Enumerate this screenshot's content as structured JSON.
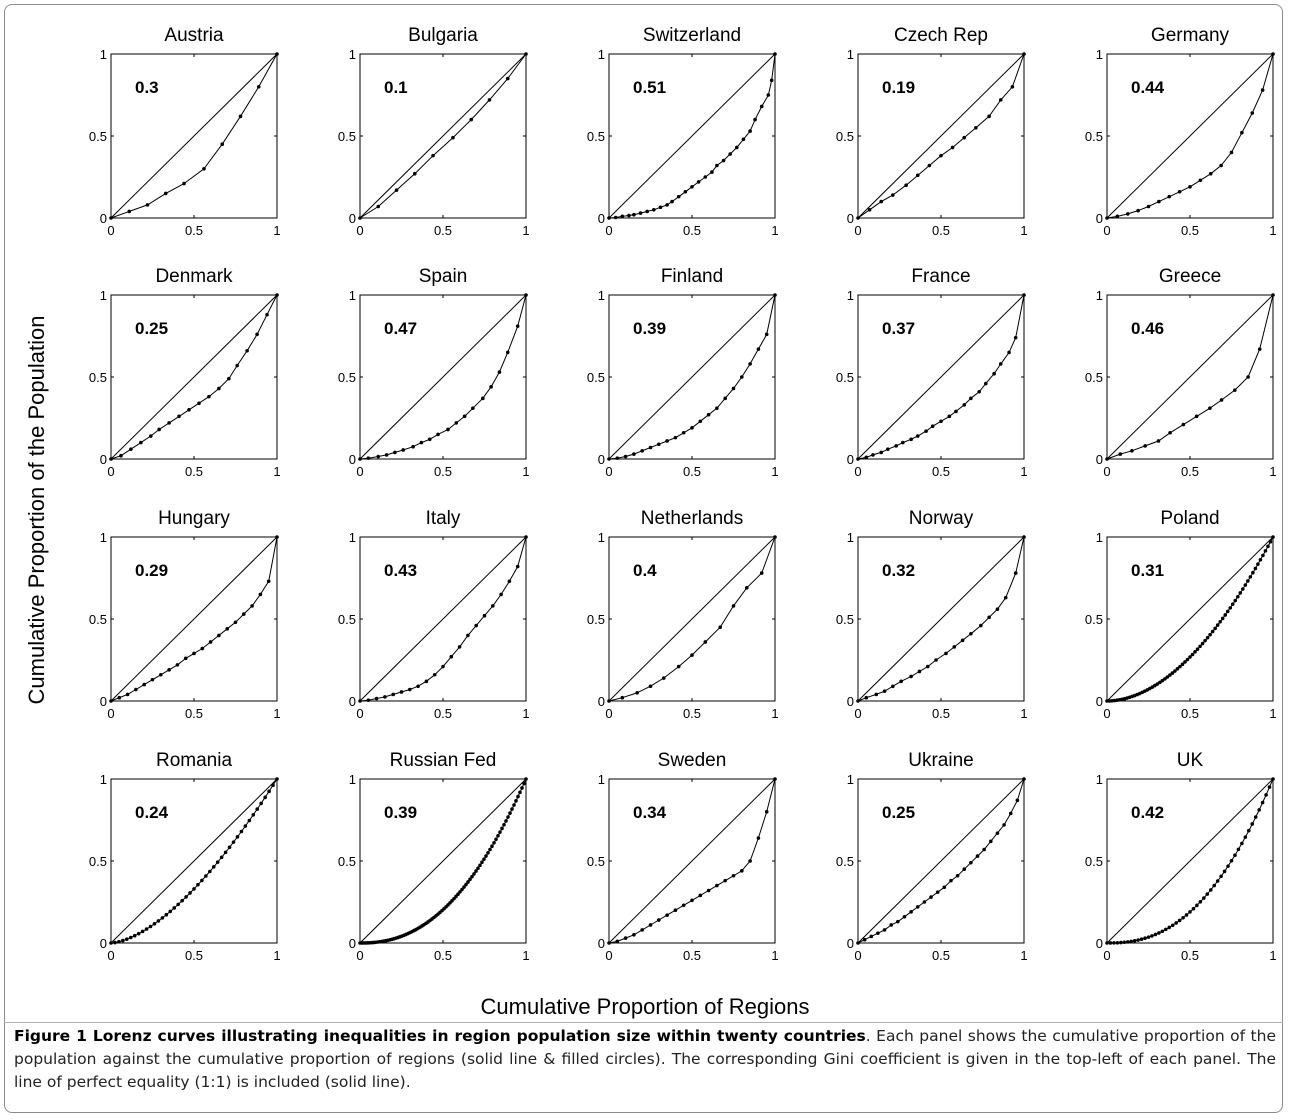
{
  "figure": {
    "ylabel": "Cumulative Proportion of the Population",
    "xlabel": "Cumulative Proportion of Regions",
    "caption_title": "Figure 1 Lorenz curves illustrating inequalities in region population size within twenty countries",
    "caption_text": ". Each panel shows the cumulative proportion of the population against the cumulative proportion of regions (solid line & filled circles). The corresponding Gini coefficient is given in the top-left of each panel. The line of perfect equality (1:1) is included (solid line)."
  },
  "chart_data": [
    {
      "type": "line",
      "title": "Austria",
      "gini_label": "0.3",
      "xlim": [
        0,
        1
      ],
      "ylim": [
        0,
        1
      ],
      "xticks": [
        "0",
        "0.5",
        "1"
      ],
      "yticks": [
        "0",
        "0.5",
        "1"
      ],
      "x": [
        0,
        0.11,
        0.22,
        0.33,
        0.44,
        0.56,
        0.67,
        0.78,
        0.89,
        1
      ],
      "y": [
        0,
        0.04,
        0.08,
        0.15,
        0.21,
        0.3,
        0.45,
        0.62,
        0.8,
        1
      ]
    },
    {
      "type": "line",
      "title": "Bulgaria",
      "gini_label": "0.1",
      "xlim": [
        0,
        1
      ],
      "ylim": [
        0,
        1
      ],
      "xticks": [
        "0",
        "0.5",
        "1"
      ],
      "yticks": [
        "0",
        "0.5",
        "1"
      ],
      "x": [
        0,
        0.11,
        0.22,
        0.33,
        0.44,
        0.56,
        0.67,
        0.78,
        0.89,
        1
      ],
      "y": [
        0,
        0.07,
        0.17,
        0.27,
        0.38,
        0.49,
        0.6,
        0.72,
        0.85,
        1
      ]
    },
    {
      "type": "line",
      "title": "Switzerland",
      "gini_label": "0.51",
      "xlim": [
        0,
        1
      ],
      "ylim": [
        0,
        1
      ],
      "xticks": [
        "0",
        "0.5",
        "1"
      ],
      "yticks": [
        "0",
        "0.5",
        "1"
      ],
      "x": [
        0,
        0.04,
        0.08,
        0.12,
        0.15,
        0.19,
        0.23,
        0.27,
        0.31,
        0.35,
        0.38,
        0.42,
        0.46,
        0.5,
        0.54,
        0.58,
        0.62,
        0.65,
        0.69,
        0.73,
        0.77,
        0.81,
        0.85,
        0.88,
        0.92,
        0.96,
        0.98,
        1
      ],
      "y": [
        0,
        0.003,
        0.01,
        0.015,
        0.02,
        0.03,
        0.04,
        0.05,
        0.065,
        0.08,
        0.1,
        0.13,
        0.16,
        0.19,
        0.22,
        0.25,
        0.28,
        0.32,
        0.35,
        0.39,
        0.43,
        0.48,
        0.53,
        0.6,
        0.68,
        0.75,
        0.84,
        1
      ]
    },
    {
      "type": "line",
      "title": "Czech Rep",
      "gini_label": "0.19",
      "xlim": [
        0,
        1
      ],
      "ylim": [
        0,
        1
      ],
      "xticks": [
        "0",
        "0.5",
        "1"
      ],
      "yticks": [
        "0",
        "0.5",
        "1"
      ],
      "x": [
        0,
        0.07,
        0.14,
        0.21,
        0.29,
        0.36,
        0.43,
        0.5,
        0.57,
        0.64,
        0.71,
        0.79,
        0.86,
        0.93,
        1
      ],
      "y": [
        0,
        0.05,
        0.1,
        0.14,
        0.2,
        0.26,
        0.32,
        0.38,
        0.43,
        0.49,
        0.55,
        0.62,
        0.72,
        0.8,
        1
      ]
    },
    {
      "type": "line",
      "title": "Germany",
      "gini_label": "0.44",
      "xlim": [
        0,
        1
      ],
      "ylim": [
        0,
        1
      ],
      "xticks": [
        "0",
        "0.5",
        "1"
      ],
      "yticks": [
        "0",
        "0.5",
        "1"
      ],
      "x": [
        0,
        0.0625,
        0.125,
        0.1875,
        0.25,
        0.3125,
        0.375,
        0.4375,
        0.5,
        0.5625,
        0.625,
        0.6875,
        0.75,
        0.8125,
        0.875,
        0.9375,
        1
      ],
      "y": [
        0,
        0.01,
        0.025,
        0.045,
        0.07,
        0.1,
        0.13,
        0.16,
        0.19,
        0.23,
        0.27,
        0.32,
        0.4,
        0.52,
        0.64,
        0.78,
        1
      ]
    },
    {
      "type": "line",
      "title": "Denmark",
      "gini_label": "0.25",
      "xlim": [
        0,
        1
      ],
      "ylim": [
        0,
        1
      ],
      "xticks": [
        "0",
        "0.5",
        "1"
      ],
      "yticks": [
        "0",
        "0.5",
        "1"
      ],
      "x": [
        0,
        0.06,
        0.12,
        0.18,
        0.24,
        0.29,
        0.35,
        0.41,
        0.47,
        0.53,
        0.59,
        0.65,
        0.71,
        0.76,
        0.82,
        0.88,
        0.94,
        1
      ],
      "y": [
        0,
        0.02,
        0.06,
        0.1,
        0.14,
        0.18,
        0.22,
        0.26,
        0.3,
        0.34,
        0.38,
        0.43,
        0.49,
        0.57,
        0.66,
        0.76,
        0.88,
        1
      ]
    },
    {
      "type": "line",
      "title": "Spain",
      "gini_label": "0.47",
      "xlim": [
        0,
        1
      ],
      "ylim": [
        0,
        1
      ],
      "xticks": [
        "0",
        "0.5",
        "1"
      ],
      "yticks": [
        "0",
        "0.5",
        "1"
      ],
      "x": [
        0,
        0.05,
        0.11,
        0.16,
        0.21,
        0.26,
        0.32,
        0.37,
        0.42,
        0.47,
        0.53,
        0.58,
        0.63,
        0.68,
        0.74,
        0.79,
        0.84,
        0.89,
        0.95,
        1
      ],
      "y": [
        0,
        0.005,
        0.015,
        0.025,
        0.04,
        0.055,
        0.075,
        0.1,
        0.12,
        0.15,
        0.18,
        0.22,
        0.26,
        0.31,
        0.37,
        0.44,
        0.53,
        0.65,
        0.81,
        1
      ]
    },
    {
      "type": "line",
      "title": "Finland",
      "gini_label": "0.39",
      "xlim": [
        0,
        1
      ],
      "ylim": [
        0,
        1
      ],
      "xticks": [
        "0",
        "0.5",
        "1"
      ],
      "yticks": [
        "0",
        "0.5",
        "1"
      ],
      "x": [
        0,
        0.05,
        0.1,
        0.15,
        0.2,
        0.25,
        0.3,
        0.35,
        0.4,
        0.45,
        0.5,
        0.55,
        0.6,
        0.65,
        0.7,
        0.75,
        0.8,
        0.85,
        0.9,
        0.95,
        1
      ],
      "y": [
        0,
        0.005,
        0.015,
        0.03,
        0.05,
        0.07,
        0.09,
        0.11,
        0.13,
        0.16,
        0.19,
        0.23,
        0.27,
        0.31,
        0.37,
        0.43,
        0.5,
        0.58,
        0.67,
        0.76,
        1
      ]
    },
    {
      "type": "line",
      "title": "France",
      "gini_label": "0.37",
      "xlim": [
        0,
        1
      ],
      "ylim": [
        0,
        1
      ],
      "xticks": [
        "0",
        "0.5",
        "1"
      ],
      "yticks": [
        "0",
        "0.5",
        "1"
      ],
      "x": [
        0,
        0.05,
        0.09,
        0.14,
        0.18,
        0.23,
        0.27,
        0.32,
        0.36,
        0.41,
        0.45,
        0.5,
        0.55,
        0.59,
        0.64,
        0.68,
        0.73,
        0.77,
        0.82,
        0.86,
        0.91,
        0.95,
        1
      ],
      "y": [
        0,
        0.01,
        0.025,
        0.04,
        0.06,
        0.08,
        0.1,
        0.12,
        0.14,
        0.17,
        0.2,
        0.23,
        0.26,
        0.29,
        0.33,
        0.37,
        0.41,
        0.46,
        0.52,
        0.58,
        0.65,
        0.74,
        1
      ]
    },
    {
      "type": "line",
      "title": "Greece",
      "gini_label": "0.46",
      "xlim": [
        0,
        1
      ],
      "ylim": [
        0,
        1
      ],
      "xticks": [
        "0",
        "0.5",
        "1"
      ],
      "yticks": [
        "0",
        "0.5",
        "1"
      ],
      "x": [
        0,
        0.08,
        0.15,
        0.23,
        0.31,
        0.38,
        0.46,
        0.54,
        0.62,
        0.69,
        0.77,
        0.85,
        0.92,
        1
      ],
      "y": [
        0,
        0.03,
        0.05,
        0.08,
        0.11,
        0.16,
        0.21,
        0.26,
        0.31,
        0.36,
        0.42,
        0.5,
        0.67,
        1
      ]
    },
    {
      "type": "line",
      "title": "Hungary",
      "gini_label": "0.29",
      "xlim": [
        0,
        1
      ],
      "ylim": [
        0,
        1
      ],
      "xticks": [
        "0",
        "0.5",
        "1"
      ],
      "yticks": [
        "0",
        "0.5",
        "1"
      ],
      "x": [
        0,
        0.05,
        0.1,
        0.15,
        0.2,
        0.25,
        0.3,
        0.35,
        0.4,
        0.45,
        0.5,
        0.55,
        0.6,
        0.65,
        0.7,
        0.75,
        0.8,
        0.85,
        0.9,
        0.95,
        1
      ],
      "y": [
        0,
        0.02,
        0.04,
        0.07,
        0.1,
        0.13,
        0.16,
        0.19,
        0.22,
        0.26,
        0.29,
        0.32,
        0.36,
        0.4,
        0.44,
        0.48,
        0.53,
        0.58,
        0.65,
        0.73,
        1
      ]
    },
    {
      "type": "line",
      "title": "Italy",
      "gini_label": "0.43",
      "xlim": [
        0,
        1
      ],
      "ylim": [
        0,
        1
      ],
      "xticks": [
        "0",
        "0.5",
        "1"
      ],
      "yticks": [
        "0",
        "0.5",
        "1"
      ],
      "x": [
        0,
        0.05,
        0.1,
        0.15,
        0.2,
        0.25,
        0.3,
        0.35,
        0.4,
        0.45,
        0.5,
        0.55,
        0.6,
        0.65,
        0.7,
        0.75,
        0.8,
        0.85,
        0.9,
        0.95,
        1
      ],
      "y": [
        0,
        0.005,
        0.015,
        0.025,
        0.04,
        0.055,
        0.07,
        0.09,
        0.12,
        0.16,
        0.21,
        0.27,
        0.33,
        0.4,
        0.46,
        0.52,
        0.58,
        0.65,
        0.73,
        0.82,
        1
      ]
    },
    {
      "type": "line",
      "title": "Netherlands",
      "gini_label": "0.4",
      "xlim": [
        0,
        1
      ],
      "ylim": [
        0,
        1
      ],
      "xticks": [
        "0",
        "0.5",
        "1"
      ],
      "yticks": [
        "0",
        "0.5",
        "1"
      ],
      "x": [
        0,
        0.08,
        0.17,
        0.25,
        0.33,
        0.42,
        0.5,
        0.58,
        0.67,
        0.75,
        0.83,
        0.92,
        1
      ],
      "y": [
        0,
        0.02,
        0.05,
        0.09,
        0.14,
        0.21,
        0.28,
        0.36,
        0.45,
        0.58,
        0.69,
        0.78,
        1
      ]
    },
    {
      "type": "line",
      "title": "Norway",
      "gini_label": "0.32",
      "xlim": [
        0,
        1
      ],
      "ylim": [
        0,
        1
      ],
      "xticks": [
        "0",
        "0.5",
        "1"
      ],
      "yticks": [
        "0",
        "0.5",
        "1"
      ],
      "x": [
        0,
        0.05,
        0.11,
        0.16,
        0.21,
        0.26,
        0.32,
        0.37,
        0.42,
        0.47,
        0.53,
        0.58,
        0.63,
        0.68,
        0.74,
        0.79,
        0.84,
        0.89,
        0.95,
        1
      ],
      "y": [
        0,
        0.02,
        0.04,
        0.06,
        0.09,
        0.12,
        0.15,
        0.18,
        0.21,
        0.25,
        0.29,
        0.33,
        0.37,
        0.41,
        0.46,
        0.51,
        0.56,
        0.63,
        0.78,
        1
      ]
    },
    {
      "type": "line",
      "title": "Poland",
      "gini_label": "0.31",
      "xlim": [
        0,
        1
      ],
      "ylim": [
        0,
        1
      ],
      "xticks": [
        "0",
        "0.5",
        "1"
      ],
      "yticks": [
        "0",
        "0.5",
        "1"
      ],
      "shape": "power",
      "exponent": 1.9,
      "n_points": 66
    },
    {
      "type": "line",
      "title": "Romania",
      "gini_label": "0.24",
      "xlim": [
        0,
        1
      ],
      "ylim": [
        0,
        1
      ],
      "xticks": [
        "0",
        "0.5",
        "1"
      ],
      "yticks": [
        "0",
        "0.5",
        "1"
      ],
      "shape": "power",
      "exponent": 1.6,
      "n_points": 42
    },
    {
      "type": "line",
      "title": "Russian Fed",
      "gini_label": "0.39",
      "xlim": [
        0,
        1
      ],
      "ylim": [
        0,
        1
      ],
      "xticks": [
        "0",
        "0.5",
        "1"
      ],
      "yticks": [
        "0",
        "0.5",
        "1"
      ],
      "shape": "power",
      "exponent": 2.3,
      "n_points": 83
    },
    {
      "type": "line",
      "title": "Sweden",
      "gini_label": "0.34",
      "xlim": [
        0,
        1
      ],
      "ylim": [
        0,
        1
      ],
      "xticks": [
        "0",
        "0.5",
        "1"
      ],
      "yticks": [
        "0",
        "0.5",
        "1"
      ],
      "x": [
        0,
        0.05,
        0.1,
        0.15,
        0.2,
        0.25,
        0.3,
        0.35,
        0.4,
        0.45,
        0.5,
        0.55,
        0.6,
        0.65,
        0.7,
        0.75,
        0.8,
        0.85,
        0.9,
        0.95,
        1
      ],
      "y": [
        0,
        0.01,
        0.03,
        0.05,
        0.08,
        0.11,
        0.14,
        0.17,
        0.2,
        0.23,
        0.26,
        0.29,
        0.32,
        0.35,
        0.38,
        0.41,
        0.44,
        0.5,
        0.64,
        0.8,
        1
      ]
    },
    {
      "type": "line",
      "title": "Ukraine",
      "gini_label": "0.25",
      "xlim": [
        0,
        1
      ],
      "ylim": [
        0,
        1
      ],
      "xticks": [
        "0",
        "0.5",
        "1"
      ],
      "yticks": [
        "0",
        "0.5",
        "1"
      ],
      "x": [
        0,
        0.04,
        0.08,
        0.12,
        0.16,
        0.2,
        0.24,
        0.28,
        0.32,
        0.36,
        0.4,
        0.44,
        0.48,
        0.52,
        0.56,
        0.6,
        0.64,
        0.68,
        0.72,
        0.76,
        0.8,
        0.84,
        0.88,
        0.92,
        0.96,
        1
      ],
      "y": [
        0,
        0.02,
        0.04,
        0.06,
        0.08,
        0.11,
        0.13,
        0.16,
        0.19,
        0.22,
        0.25,
        0.28,
        0.31,
        0.34,
        0.38,
        0.41,
        0.45,
        0.49,
        0.53,
        0.57,
        0.62,
        0.67,
        0.72,
        0.79,
        0.87,
        1
      ]
    },
    {
      "type": "line",
      "title": "UK",
      "gini_label": "0.42",
      "xlim": [
        0,
        1
      ],
      "ylim": [
        0,
        1
      ],
      "xticks": [
        "0",
        "0.5",
        "1"
      ],
      "yticks": [
        "0",
        "0.5",
        "1"
      ],
      "shape": "power",
      "exponent": 2.4,
      "n_points": 48
    }
  ]
}
